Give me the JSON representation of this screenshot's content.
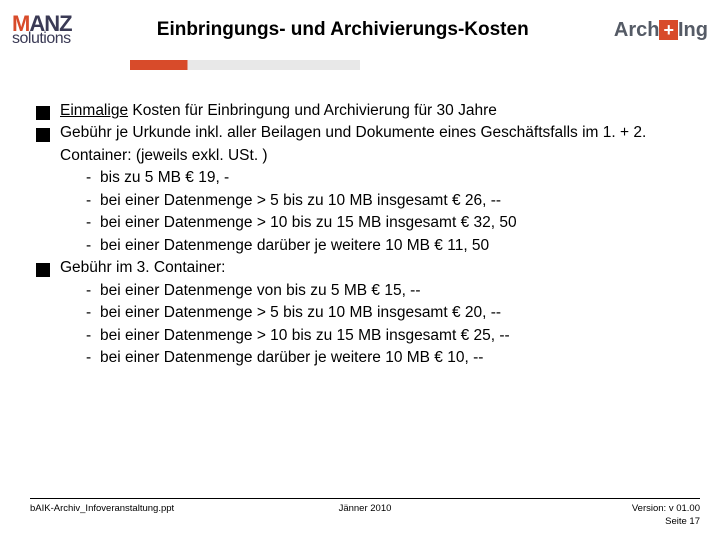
{
  "header": {
    "logo_left_main": "MANZ",
    "logo_left_sub": "solutions",
    "title": "Einbringungs- und Archivierungs-Kosten",
    "logo_right_pre": "Arch",
    "logo_right_plus": "+",
    "logo_right_post": "Ing"
  },
  "colors": {
    "accent": "#d84b2a",
    "text": "#000000",
    "logo_dark": "#3a3a55",
    "arching_gray": "#555b66"
  },
  "bullets": {
    "b1_pre": "Einmalige",
    "b1_post": " Kosten für Einbringung und Archivierung für 30 Jahre",
    "b2": "Gebühr je Urkunde inkl. aller Beilagen und Dokumente eines Geschäftsfalls im 1. + 2. Container: (jeweils exkl. USt. )",
    "b2_sub": [
      "bis zu 5 MB € 19, -",
      "bei einer Datenmenge > 5 bis zu 10 MB insgesamt € 26, --",
      "bei einer Datenmenge > 10 bis zu 15 MB insgesamt € 32, 50",
      "bei einer Datenmenge darüber je weitere 10 MB € 11, 50"
    ],
    "b3": "Gebühr im 3. Container:",
    "b3_sub": [
      "bei einer Datenmenge von bis zu 5 MB € 15, --",
      "bei einer Datenmenge > 5 bis zu 10 MB insgesamt € 20, --",
      "bei einer Datenmenge > 10 bis zu 15 MB insgesamt € 25, --",
      "bei einer Datenmenge darüber je weitere 10 MB € 10, --"
    ]
  },
  "footer": {
    "left": "bAIK-Archiv_Infoveranstaltung.ppt",
    "center": "Jänner 2010",
    "right_line1": "Version: v 01.00",
    "right_line2": "Seite 17"
  }
}
